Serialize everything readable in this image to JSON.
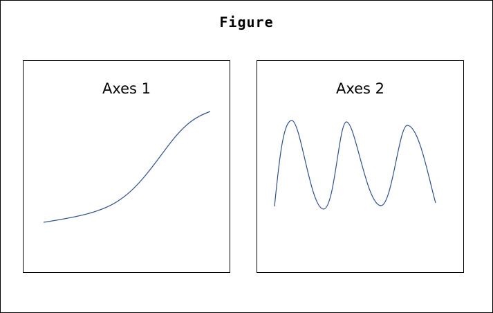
{
  "figure": {
    "title": "Figure",
    "line_color": "#2f4f8f"
  },
  "axes": [
    {
      "title": "Axes 1",
      "curve_shape": "s-curve"
    },
    {
      "title": "Axes 2",
      "curve_shape": "sine-wave"
    }
  ]
}
